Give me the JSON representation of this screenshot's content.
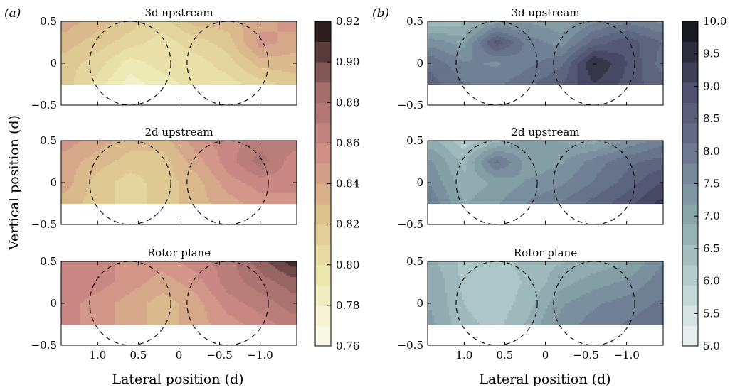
{
  "figure": {
    "panels": [
      {
        "letter": "(a)",
        "colorbar": {
          "min": 0.76,
          "max": 0.92,
          "ticks": [
            "0.76",
            "0.78",
            "0.80",
            "0.82",
            "0.84",
            "0.86",
            "0.88",
            "0.90",
            "0.92"
          ],
          "colors": [
            "#fcfcf0",
            "#ede9b2",
            "#ddc48e",
            "#cf8c86",
            "#9f6b6a",
            "#1c1010"
          ]
        }
      },
      {
        "letter": "(b)",
        "colorbar": {
          "min": 5.0,
          "max": 10.0,
          "ticks": [
            "5.0",
            "5.5",
            "6.0",
            "6.5",
            "7.0",
            "7.5",
            "8.0",
            "8.5",
            "9.0",
            "9.5",
            "10.0"
          ],
          "colors": [
            "#eef4f4",
            "#b8d0d0",
            "#8aa7ab",
            "#6b7890",
            "#4c4d6a",
            "#111118"
          ]
        }
      }
    ],
    "ylabel": "Vertical position (d)",
    "xlabel": "Lateral position (d)",
    "x_ticks": [
      "1.0",
      "0.5",
      "0",
      "−0.5",
      "−1.0"
    ],
    "y_ticks": [
      "0.5",
      "0",
      "−0.5"
    ]
  },
  "chart_data": [
    {
      "type": "heatmap",
      "panel": "(a)",
      "title": "3d upstream",
      "xlabel": "",
      "ylabel": "Vertical position (d)",
      "xlim": [
        1.45,
        -1.45
      ],
      "ylim": [
        -0.5,
        0.5
      ],
      "data_ylim": [
        -0.25,
        0.5
      ],
      "turbine_circles": [
        {
          "x": 0.6,
          "y": 0,
          "r": 0.5
        },
        {
          "x": -0.6,
          "y": 0,
          "r": 0.5
        }
      ],
      "x": [
        1.4,
        1.0,
        0.6,
        0.2,
        -0.2,
        -0.6,
        -1.0,
        -1.4
      ],
      "y": [
        0.5,
        0.25,
        0.0,
        -0.25
      ],
      "z": [
        [
          0.84,
          0.83,
          0.82,
          0.81,
          0.83,
          0.83,
          0.84,
          0.85
        ],
        [
          0.83,
          0.82,
          0.81,
          0.8,
          0.81,
          0.82,
          0.85,
          0.84
        ],
        [
          0.82,
          0.81,
          0.79,
          0.8,
          0.8,
          0.81,
          0.83,
          0.83
        ],
        [
          0.82,
          0.8,
          0.78,
          0.79,
          0.8,
          0.8,
          0.81,
          0.82
        ]
      ]
    },
    {
      "type": "heatmap",
      "panel": "(a)",
      "title": "2d upstream",
      "xlabel": "",
      "ylabel": "Vertical position (d)",
      "xlim": [
        1.45,
        -1.45
      ],
      "ylim": [
        -0.5,
        0.5
      ],
      "data_ylim": [
        -0.25,
        0.5
      ],
      "turbine_circles": [
        {
          "x": 0.6,
          "y": 0,
          "r": 0.5
        },
        {
          "x": -0.6,
          "y": 0,
          "r": 0.5
        }
      ],
      "x": [
        1.4,
        1.0,
        0.6,
        0.2,
        -0.2,
        -0.6,
        -1.0,
        -1.4
      ],
      "y": [
        0.5,
        0.25,
        0.0,
        -0.25
      ],
      "z": [
        [
          0.85,
          0.84,
          0.83,
          0.83,
          0.85,
          0.86,
          0.87,
          0.87
        ],
        [
          0.84,
          0.83,
          0.82,
          0.82,
          0.84,
          0.86,
          0.88,
          0.86
        ],
        [
          0.84,
          0.82,
          0.81,
          0.82,
          0.83,
          0.85,
          0.86,
          0.86
        ],
        [
          0.83,
          0.82,
          0.81,
          0.82,
          0.83,
          0.84,
          0.85,
          0.85
        ]
      ]
    },
    {
      "type": "heatmap",
      "panel": "(a)",
      "title": "Rotor plane",
      "xlabel": "Lateral position (d)",
      "ylabel": "Vertical position (d)",
      "xlim": [
        1.45,
        -1.45
      ],
      "ylim": [
        -0.5,
        0.5
      ],
      "data_ylim": [
        -0.25,
        0.5
      ],
      "turbine_circles": [
        {
          "x": 0.6,
          "y": 0,
          "r": 0.5
        },
        {
          "x": -0.6,
          "y": 0,
          "r": 0.5
        }
      ],
      "x": [
        1.4,
        1.0,
        0.6,
        0.2,
        -0.2,
        -0.6,
        -1.0,
        -1.4
      ],
      "y": [
        0.5,
        0.25,
        0.0,
        -0.25
      ],
      "z": [
        [
          0.86,
          0.86,
          0.85,
          0.85,
          0.86,
          0.87,
          0.89,
          0.91
        ],
        [
          0.86,
          0.86,
          0.85,
          0.84,
          0.85,
          0.87,
          0.88,
          0.89
        ],
        [
          0.86,
          0.85,
          0.84,
          0.83,
          0.84,
          0.86,
          0.87,
          0.88
        ],
        [
          0.86,
          0.85,
          0.84,
          0.83,
          0.84,
          0.85,
          0.86,
          0.87
        ]
      ]
    },
    {
      "type": "heatmap",
      "panel": "(b)",
      "title": "3d upstream",
      "xlabel": "",
      "ylabel": "",
      "xlim": [
        1.45,
        -1.45
      ],
      "ylim": [
        -0.5,
        0.5
      ],
      "data_ylim": [
        -0.25,
        0.5
      ],
      "turbine_circles": [
        {
          "x": 0.6,
          "y": 0,
          "r": 0.5
        },
        {
          "x": -0.6,
          "y": 0,
          "r": 0.5
        }
      ],
      "x": [
        1.4,
        1.0,
        0.6,
        0.2,
        -0.2,
        -0.6,
        -1.0,
        -1.4
      ],
      "y": [
        0.5,
        0.25,
        0.0,
        -0.25
      ],
      "z": [
        [
          6.4,
          6.6,
          7.2,
          7.3,
          7.1,
          7.6,
          7.9,
          7.6
        ],
        [
          7.5,
          7.2,
          8.8,
          7.8,
          7.5,
          8.4,
          8.8,
          8.3
        ],
        [
          8.2,
          7.7,
          7.6,
          7.9,
          8.2,
          9.6,
          8.9,
          8.2
        ],
        [
          8.4,
          8.0,
          7.9,
          8.2,
          8.6,
          9.2,
          8.8,
          8.4
        ]
      ]
    },
    {
      "type": "heatmap",
      "panel": "(b)",
      "title": "2d upstream",
      "xlabel": "",
      "ylabel": "",
      "xlim": [
        1.45,
        -1.45
      ],
      "ylim": [
        -0.5,
        0.5
      ],
      "data_ylim": [
        -0.25,
        0.5
      ],
      "turbine_circles": [
        {
          "x": 0.6,
          "y": 0,
          "r": 0.5
        },
        {
          "x": -0.6,
          "y": 0,
          "r": 0.5
        }
      ],
      "x": [
        1.4,
        1.0,
        0.6,
        0.2,
        -0.2,
        -0.6,
        -1.0,
        -1.4
      ],
      "y": [
        0.5,
        0.25,
        0.0,
        -0.25
      ],
      "z": [
        [
          6.8,
          6.2,
          6.6,
          7.2,
          7.0,
          6.9,
          7.4,
          7.8
        ],
        [
          7.4,
          6.6,
          8.1,
          7.1,
          7.3,
          7.8,
          8.2,
          8.4
        ],
        [
          7.6,
          6.8,
          7.1,
          7.4,
          7.6,
          8.0,
          8.4,
          8.9
        ],
        [
          7.9,
          7.0,
          7.3,
          7.7,
          8.0,
          8.4,
          8.8,
          9.3
        ]
      ]
    },
    {
      "type": "heatmap",
      "panel": "(b)",
      "title": "Rotor plane",
      "xlabel": "Lateral position (d)",
      "ylabel": "",
      "xlim": [
        1.45,
        -1.45
      ],
      "ylim": [
        -0.5,
        0.5
      ],
      "data_ylim": [
        -0.25,
        0.5
      ],
      "turbine_circles": [
        {
          "x": 0.6,
          "y": 0,
          "r": 0.5
        },
        {
          "x": -0.6,
          "y": 0,
          "r": 0.5
        }
      ],
      "x": [
        1.4,
        1.0,
        0.6,
        0.2,
        -0.2,
        -0.6,
        -1.0,
        -1.4
      ],
      "y": [
        0.5,
        0.25,
        0.0,
        -0.25
      ],
      "z": [
        [
          6.8,
          6.3,
          6.2,
          6.6,
          6.7,
          6.8,
          7.0,
          7.6
        ],
        [
          7.0,
          6.3,
          6.1,
          6.5,
          6.9,
          7.2,
          7.4,
          7.8
        ],
        [
          7.0,
          6.4,
          6.2,
          6.6,
          7.3,
          7.6,
          7.8,
          8.0
        ],
        [
          7.1,
          6.5,
          6.3,
          6.8,
          7.5,
          7.8,
          8.0,
          8.2
        ]
      ]
    }
  ]
}
